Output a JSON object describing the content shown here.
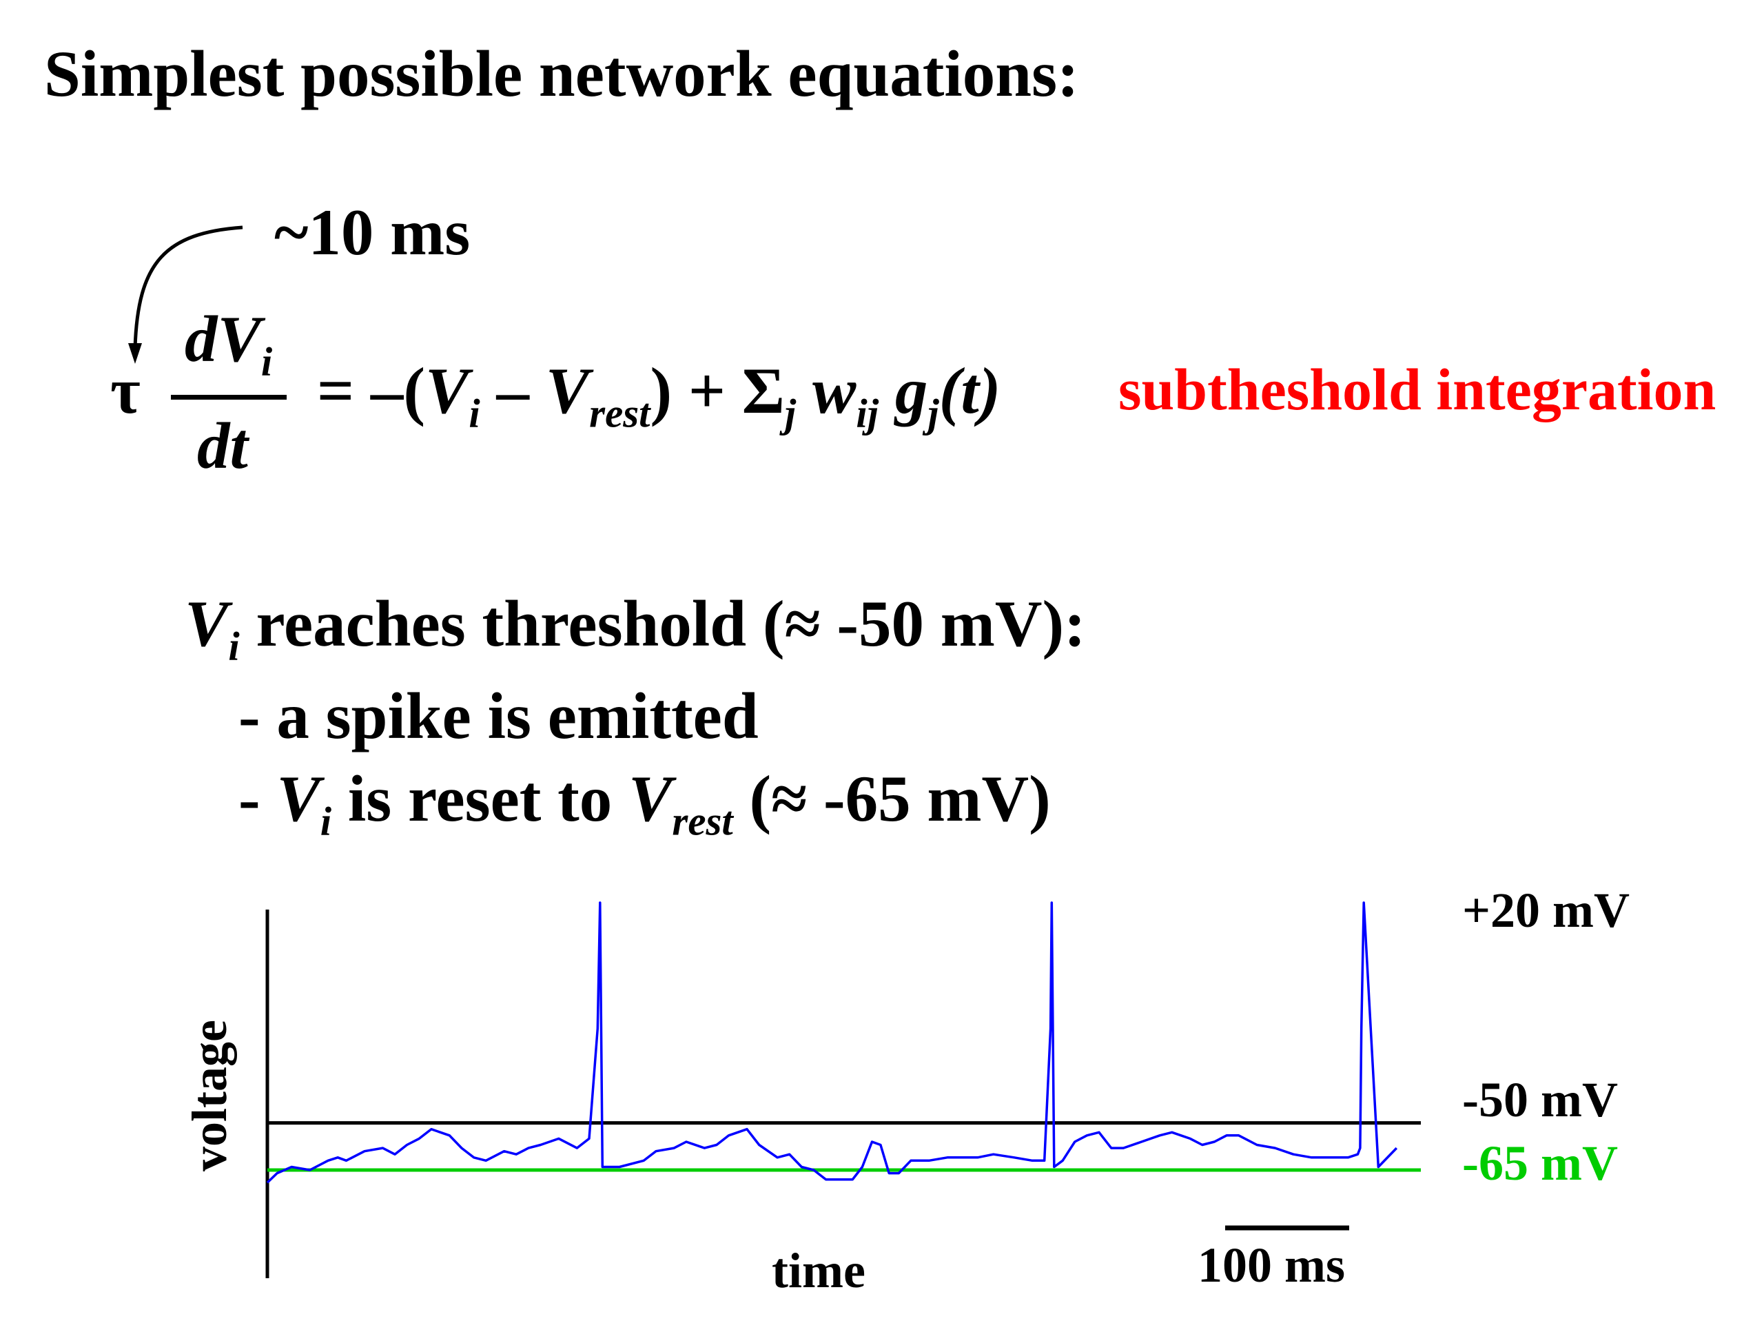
{
  "title": "Simplest possible network equations:",
  "tau_annotation": "~10 ms",
  "equation": {
    "tau": "τ",
    "numerator": "dV",
    "numerator_sub": "i",
    "denominator": "dt",
    "rhs_prefix": "= –(",
    "v": "V",
    "v_sub": "i",
    "minus": " – ",
    "v_rest": "V",
    "v_rest_sub": "rest",
    "rhs_mid": ") + Σ",
    "sum_sub": "j",
    "w": " w",
    "w_sub": "ij",
    "g": " g",
    "g_sub": "j",
    "g_arg": "(t)"
  },
  "equation_label": "subtheshold integration",
  "threshold_condition": {
    "v": "V",
    "v_sub": "i",
    "text": " reaches threshold (≈ -50 mV):"
  },
  "bullets": {
    "spike": "- a spike is emitted",
    "reset_prefix": "- ",
    "reset_v": "V",
    "reset_v_sub": "i",
    "reset_mid": " is reset to ",
    "reset_vrest": "V",
    "reset_vrest_sub": "rest",
    "reset_suffix": " (≈ -65 mV)"
  },
  "chart_data": {
    "type": "line",
    "xlabel": "time",
    "ylabel": "voltage",
    "scale_bar_label": "100 ms",
    "reference_labels": {
      "peak": "+20 mV",
      "threshold": "-50 mV",
      "rest": "-65 mV"
    },
    "threshold_mv": -50,
    "rest_mv": -65,
    "peak_mv": 20,
    "ylim": [
      -72,
      20
    ],
    "xlim": [
      0,
      950
    ],
    "series": [
      {
        "color": "#0000ff",
        "x": [
          0,
          8,
          20,
          35,
          50,
          58,
          65,
          80,
          95,
          105,
          115,
          125,
          135,
          150,
          160,
          170,
          180,
          195,
          205,
          215,
          225,
          240,
          255,
          265,
          272,
          274,
          276,
          290,
          310,
          320,
          335,
          345,
          360,
          370,
          380,
          395,
          405,
          420,
          430,
          440,
          450,
          460,
          470,
          482,
          490,
          498,
          505,
          512,
          520,
          530,
          545,
          560,
          575,
          585,
          598,
          615,
          630,
          640,
          645,
          646,
          648,
          655,
          665,
          675,
          685,
          695,
          705,
          720,
          735,
          745,
          760,
          770,
          780,
          790,
          800,
          815,
          830,
          845,
          860,
          875,
          890,
          898,
          900,
          901,
          903,
          915,
          930
        ],
        "y": [
          -69,
          -66,
          -64,
          -65,
          -62,
          -61,
          -62,
          -59,
          -58,
          -60,
          -57,
          -55,
          -52,
          -54,
          -58,
          -61,
          -62,
          -59,
          -60,
          -58,
          -57,
          -55,
          -58,
          -55,
          -20,
          20,
          -64,
          -64,
          -62,
          -59,
          -58,
          -56,
          -58,
          -57,
          -54,
          -52,
          -57,
          -61,
          -60,
          -64,
          -65,
          -68,
          -68,
          -68,
          -64,
          -56,
          -57,
          -66,
          -66,
          -62,
          -62,
          -61,
          -61,
          -61,
          -60,
          -61,
          -62,
          -62,
          -20,
          20,
          -64,
          -62,
          -56,
          -54,
          -53,
          -58,
          -58,
          -56,
          -54,
          -53,
          -55,
          -57,
          -56,
          -54,
          -54,
          -57,
          -58,
          -60,
          -61,
          -61,
          -61,
          -60,
          -58,
          -20,
          20,
          -64,
          -58
        ]
      }
    ]
  }
}
